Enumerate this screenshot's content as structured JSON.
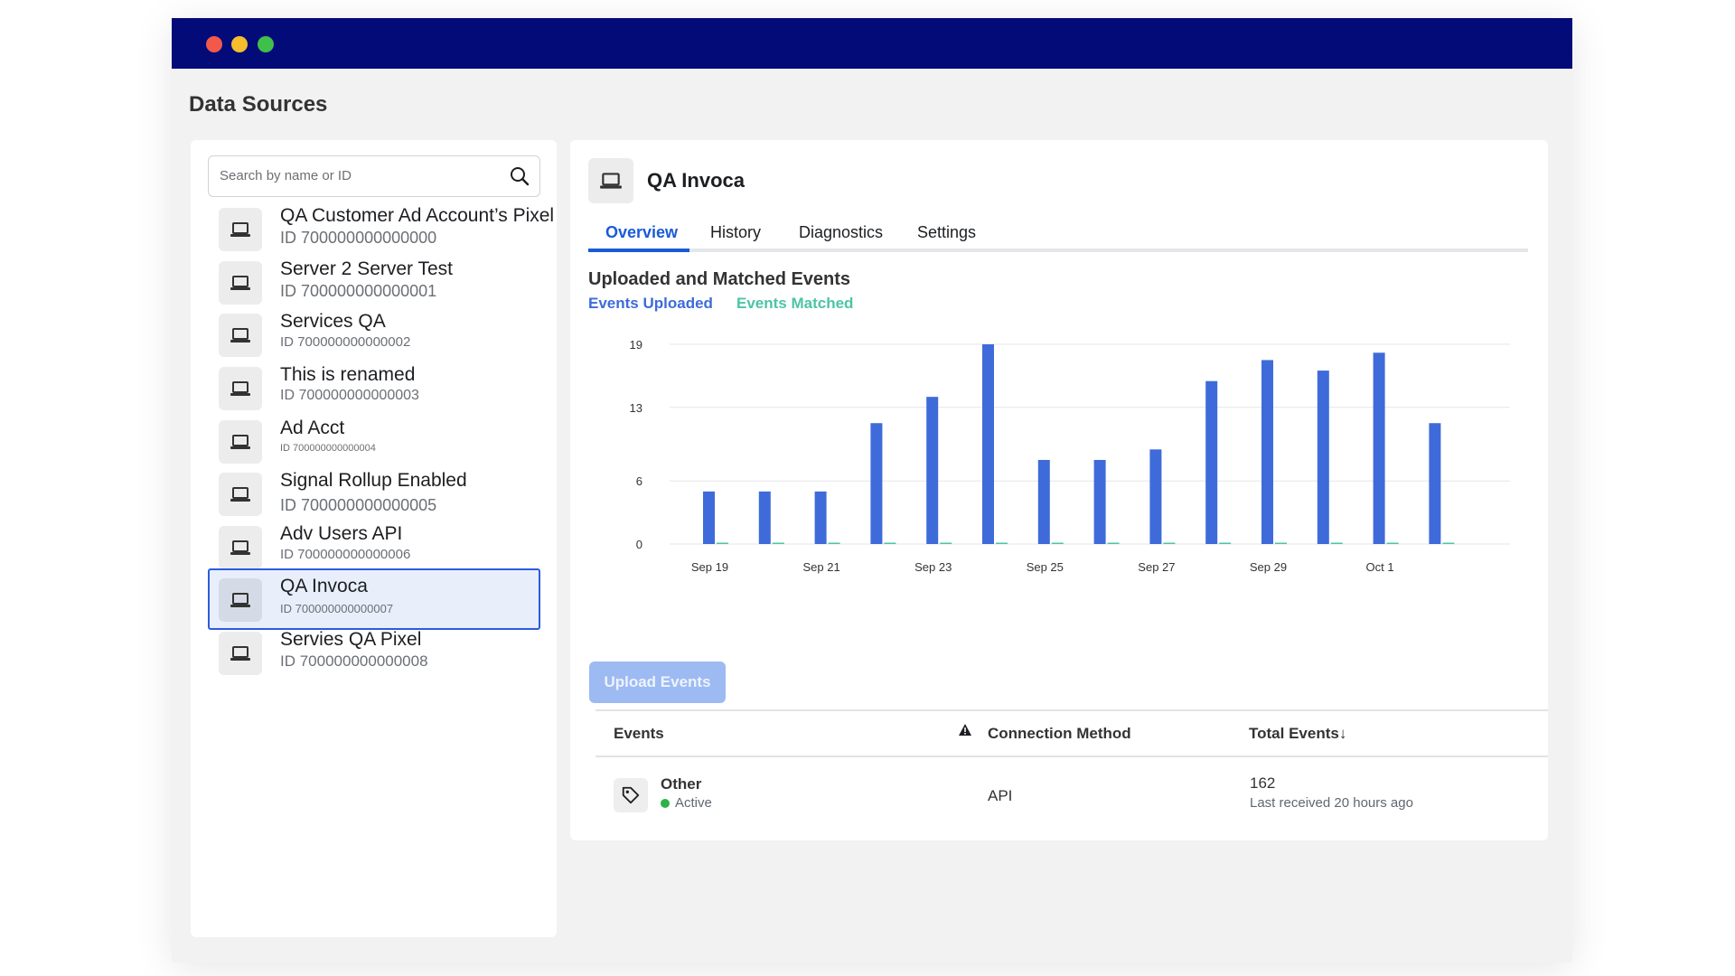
{
  "page_title": "Data Sources",
  "search": {
    "placeholder": "Search by name or ID"
  },
  "sources": [
    {
      "name": "QA Customer Ad Account’s Pixel",
      "id": "ID 700000000000000"
    },
    {
      "name": "Server 2 Server Test",
      "id": "ID 700000000000001"
    },
    {
      "name": "Services QA",
      "id": "ID 700000000000002"
    },
    {
      "name": "This is renamed",
      "id": "ID 700000000000003"
    },
    {
      "name": "Ad Acct",
      "id": "ID 700000000000004"
    },
    {
      "name": "Signal Rollup Enabled",
      "id": "ID 700000000000005"
    },
    {
      "name": "Adv Users API",
      "id": "ID 700000000000006"
    },
    {
      "name": "QA Invoca",
      "id": "ID 700000000000007",
      "selected": true
    },
    {
      "name": "Servies QA Pixel",
      "id": "ID 700000000000008"
    }
  ],
  "detail": {
    "title": "QA Invoca",
    "tabs": [
      "Overview",
      "History",
      "Diagnostics",
      "Settings"
    ],
    "active_tab": "Overview"
  },
  "chart_data": {
    "type": "bar",
    "title": "Uploaded and Matched Events",
    "x_tick_labels": [
      "Sep 19",
      "Sep 21",
      "Sep 23",
      "Sep 25",
      "Sep 27",
      "Sep 29",
      "Oct 1"
    ],
    "y_ticks": [
      0,
      6,
      13,
      19
    ],
    "ylim": [
      0,
      19
    ],
    "series": [
      {
        "name": "Events Uploaded",
        "color": "#3e6bd9",
        "values": [
          5,
          5,
          5,
          11.5,
          14,
          19,
          8,
          8,
          9,
          15.5,
          17.5,
          16.5,
          18.2,
          11.5
        ]
      },
      {
        "name": "Events Matched",
        "color": "#4dc4a6",
        "values": [
          0,
          0,
          0,
          0,
          0,
          0,
          0,
          0,
          0,
          0,
          0,
          0,
          0,
          0
        ]
      }
    ],
    "grid": true
  },
  "upload_button": "Upload Events",
  "table": {
    "headers": {
      "events": "Events",
      "connection": "Connection Method",
      "total": "Total Events↓"
    },
    "rows": [
      {
        "name": "Other",
        "status": "Active",
        "method": "API",
        "total": "162",
        "last": "Last received 20 hours ago"
      }
    ]
  }
}
